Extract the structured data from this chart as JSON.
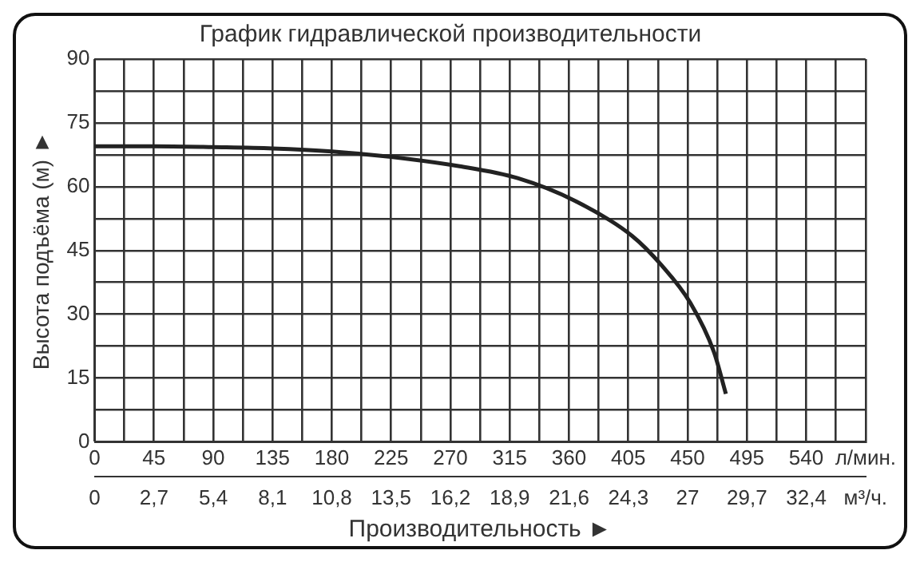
{
  "chart_data": {
    "type": "line",
    "title": "График гидравлической производительности",
    "xlabel": "Производительность ►",
    "ylabel": "Высота подъёма (м) ►",
    "x": [
      0,
      45,
      90,
      135,
      180,
      225,
      277,
      321,
      365,
      408,
      430,
      452,
      470,
      479
    ],
    "series": [
      {
        "color": "#222222",
        "values": [
          69.5,
          69.5,
          69.3,
          69,
          68.3,
          67,
          64.8,
          62,
          56.6,
          48.4,
          41.6,
          32.7,
          21.1,
          11.3
        ]
      }
    ],
    "xlim": [
      0,
      585
    ],
    "xticks": [
      0,
      {
        "value": 22.5,
        "label": null
      },
      45,
      {
        "value": 67.5,
        "label": null
      },
      90,
      {
        "value": 112.5,
        "label": null
      },
      135,
      {
        "value": 157.5,
        "label": null
      },
      180,
      {
        "value": 202.5,
        "label": null
      },
      225,
      {
        "value": 247.5,
        "label": null
      },
      270,
      {
        "value": 292.5,
        "label": null
      },
      315,
      {
        "value": 337.5,
        "label": null
      },
      360,
      {
        "value": 382.5,
        "label": null
      },
      405,
      {
        "value": 427.5,
        "label": null
      },
      450,
      {
        "value": 472.5,
        "label": null
      },
      495,
      {
        "value": 517.5,
        "label": null
      },
      540,
      {
        "value": 562.5,
        "label": null
      },
      {
        "value": 585,
        "label": "л/мин."
      }
    ],
    "x2lim": [
      0,
      35.1
    ],
    "x2ticks": [
      0,
      {
        "value": 2.7,
        "label": "2,7"
      },
      {
        "value": 5.4,
        "label": "5,4"
      },
      {
        "value": 8.1,
        "label": "8,1"
      },
      {
        "value": 10.8,
        "label": "10,8"
      },
      {
        "value": 13.5,
        "label": "13,5"
      },
      {
        "value": 16.2,
        "label": "16,2"
      },
      {
        "value": 18.9,
        "label": "18,9"
      },
      {
        "value": 21.6,
        "label": "21,6"
      },
      {
        "value": 24.3,
        "label": "24,3"
      },
      27,
      {
        "value": 29.7,
        "label": "29,7"
      },
      {
        "value": 32.4,
        "label": "32,4"
      },
      {
        "value": 35.1,
        "label": "м³/ч."
      }
    ],
    "ylim": [
      0,
      90
    ],
    "yticks": [
      0,
      {
        "value": 7.5,
        "label": null
      },
      15,
      {
        "value": 22.5,
        "label": null
      },
      30,
      {
        "value": 37.5,
        "label": null
      },
      45,
      {
        "value": 52.5,
        "label": null
      },
      60,
      {
        "value": 67.5,
        "label": null
      },
      75,
      {
        "value": 82.5,
        "label": null
      },
      90
    ],
    "grid": true,
    "legend": false,
    "marker": "none",
    "line_style": "solid"
  }
}
